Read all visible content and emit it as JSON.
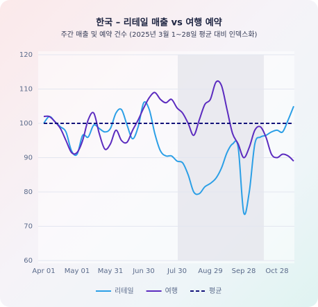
{
  "chart_data": {
    "type": "line",
    "title": "한국 – 리테일 매출 vs 여행 예약",
    "subtitle": "주간 매출 및 예약 건수 (2025년 3월 1~28일 평균 대비 인덱스화)",
    "categories": [
      "Apr 01",
      null,
      null,
      null,
      null,
      null,
      "May 01",
      null,
      null,
      null,
      null,
      null,
      "May 31",
      null,
      null,
      null,
      null,
      null,
      "Jun 30",
      null,
      null,
      null,
      null,
      null,
      "Jul 30",
      null,
      null,
      null,
      null,
      null,
      "Aug 29",
      null,
      null,
      null,
      null,
      null,
      "Sep 28",
      null,
      null,
      null,
      null,
      null,
      "Oct 28",
      null,
      null,
      null
    ],
    "series": [
      {
        "name": "리테일",
        "color": "#2b9fe6",
        "values": [
          100,
          102,
          100.5,
          99,
          97.5,
          92,
          91,
          96.5,
          96,
          99.5,
          98.5,
          97.5,
          98.5,
          103,
          104,
          99.5,
          95.5,
          99,
          106,
          104,
          97,
          92,
          90.5,
          90.5,
          89,
          88.5,
          85,
          80,
          79.5,
          81.5,
          82.5,
          84,
          87,
          91.5,
          94,
          93,
          74,
          80,
          94,
          96,
          96.5,
          97.5,
          98,
          97.5,
          101,
          105
        ]
      },
      {
        "name": "여행",
        "color": "#5b2bbf",
        "values": [
          102,
          102,
          100.5,
          98.5,
          95,
          91.5,
          91.5,
          95,
          101,
          103,
          97,
          92.5,
          94,
          98,
          95,
          94.5,
          98,
          101,
          104.5,
          107.5,
          109,
          107,
          106,
          107,
          104.5,
          103,
          100,
          96.5,
          101,
          105.5,
          107,
          112,
          111,
          104,
          97,
          94,
          90,
          93,
          98,
          99,
          96,
          91,
          90,
          91,
          90.5,
          89
        ]
      }
    ],
    "reference_line": {
      "name": "평균",
      "value": 100,
      "color": "#12127a"
    },
    "ylim": [
      60,
      120
    ],
    "yticks": [
      60,
      70,
      80,
      90,
      100,
      110,
      120
    ],
    "grid": true
  }
}
